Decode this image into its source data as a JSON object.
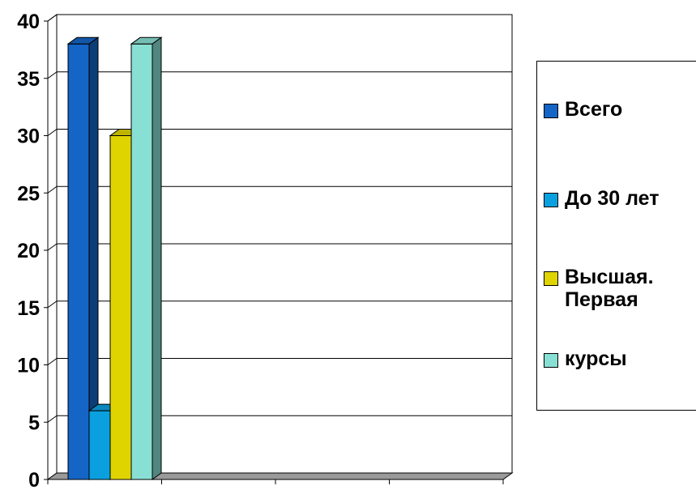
{
  "chart_data": {
    "type": "bar",
    "categories": [
      ""
    ],
    "series": [
      {
        "name": "Всего",
        "values": [
          38
        ],
        "color": "#1565c6"
      },
      {
        "name": "До 30 лет",
        "values": [
          6
        ],
        "color": "#0aa0e0"
      },
      {
        "name": "Высшая.\nПервая",
        "values": [
          30
        ],
        "color": "#e0d400"
      },
      {
        "name": "курсы",
        "values": [
          38
        ],
        "color": "#88e0d4"
      }
    ],
    "ylim": [
      0,
      40
    ],
    "yticks": [
      "0",
      "5",
      "10",
      "15",
      "20",
      "25",
      "30",
      "35",
      "40"
    ],
    "grid": true,
    "legend_position": "right",
    "style": "3d-clustered-column",
    "title": "",
    "xlabel": "",
    "ylabel": ""
  },
  "legend": {
    "items": [
      {
        "label": "Всего"
      },
      {
        "label": "До 30 лет"
      },
      {
        "label": "Высшая.\nПервая"
      },
      {
        "label": "курсы"
      }
    ]
  }
}
